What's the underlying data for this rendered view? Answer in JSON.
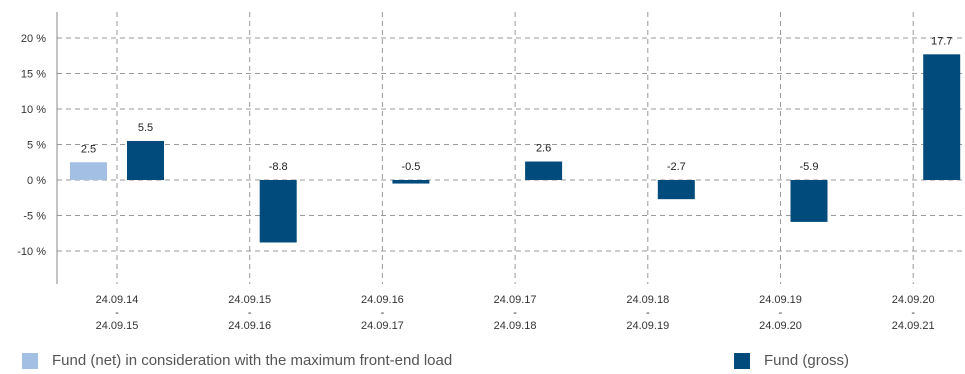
{
  "chart_data": {
    "type": "bar",
    "categories": [
      [
        "24.09.14",
        "-",
        "24.09.15"
      ],
      [
        "24.09.15",
        "-",
        "24.09.16"
      ],
      [
        "24.09.16",
        "-",
        "24.09.17"
      ],
      [
        "24.09.17",
        "-",
        "24.09.18"
      ],
      [
        "24.09.18",
        "-",
        "24.09.19"
      ],
      [
        "24.09.19",
        "-",
        "24.09.20"
      ],
      [
        "24.09.20",
        "-",
        "24.09.21"
      ]
    ],
    "series": [
      {
        "name": "Fund (net) in consideration with the maximum front-end load",
        "color": "#a3bfe3",
        "values": [
          2.5,
          null,
          null,
          null,
          null,
          null,
          null
        ],
        "labels": [
          "2.5",
          null,
          null,
          null,
          null,
          null,
          null
        ]
      },
      {
        "name": "Fund (gross)",
        "color": "#004a7c",
        "values": [
          5.5,
          -8.8,
          -0.5,
          2.6,
          -2.7,
          -5.9,
          17.7
        ],
        "labels": [
          "5.5",
          "-8.8",
          "-0.5",
          "2.6",
          "-2.7",
          "-5.9",
          "17.7"
        ]
      }
    ],
    "yticks": [
      20,
      15,
      10,
      5,
      0,
      -5,
      -10
    ],
    "ytick_labels": [
      "20 %",
      "15 %",
      "10 %",
      "5 %",
      "0 %",
      "-5 %",
      "-10 %"
    ],
    "ylim": [
      -14,
      24
    ],
    "grid": true,
    "legend_position": "bottom"
  }
}
